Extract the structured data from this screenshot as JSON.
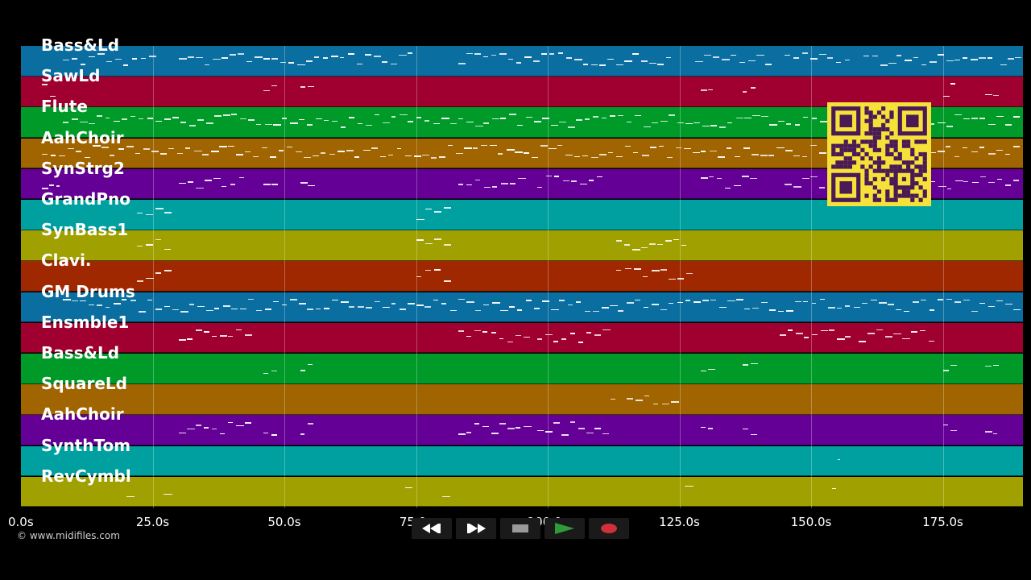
{
  "tracks": [
    {
      "name": "Bass&Ld",
      "color": "#0a6ea0"
    },
    {
      "name": "SawLd",
      "color": "#a00030"
    },
    {
      "name": "Flute",
      "color": "#009a28"
    },
    {
      "name": "AahChoir",
      "color": "#a06400"
    },
    {
      "name": "SynStrg2",
      "color": "#640096"
    },
    {
      "name": "GrandPno",
      "color": "#00a0a0"
    },
    {
      "name": "SynBass1",
      "color": "#a0a000"
    },
    {
      "name": "Clavi.",
      "color": "#a02800"
    },
    {
      "name": "GM Drums",
      "color": "#0a6ea0"
    },
    {
      "name": "Ensmble1",
      "color": "#a00030"
    },
    {
      "name": "Bass&Ld",
      "color": "#009a28"
    },
    {
      "name": "SquareLd",
      "color": "#a06400"
    },
    {
      "name": "AahChoir",
      "color": "#640096"
    },
    {
      "name": "SynthTom",
      "color": "#00a0a0"
    },
    {
      "name": "RevCymbl",
      "color": "#a0a000"
    }
  ],
  "timeline": {
    "ticks": [
      "0.0s",
      "25.0s",
      "50.0s",
      "75.0s",
      "100.0s",
      "125.0s",
      "150.0s",
      "175.0s"
    ],
    "total_seconds": 190
  },
  "copyright": "© www.midifiles.com",
  "transport": {
    "rewind": "rewind-icon",
    "fast_forward": "fast-forward-icon",
    "stop": "stop-icon",
    "play": "play-icon",
    "record": "record-icon"
  },
  "colors": {
    "background": "#000000",
    "play_accent": "#2f9a3a",
    "record_accent": "#d0303a",
    "qr_background": "#f5e13a",
    "qr_foreground": "#4a1a55"
  }
}
